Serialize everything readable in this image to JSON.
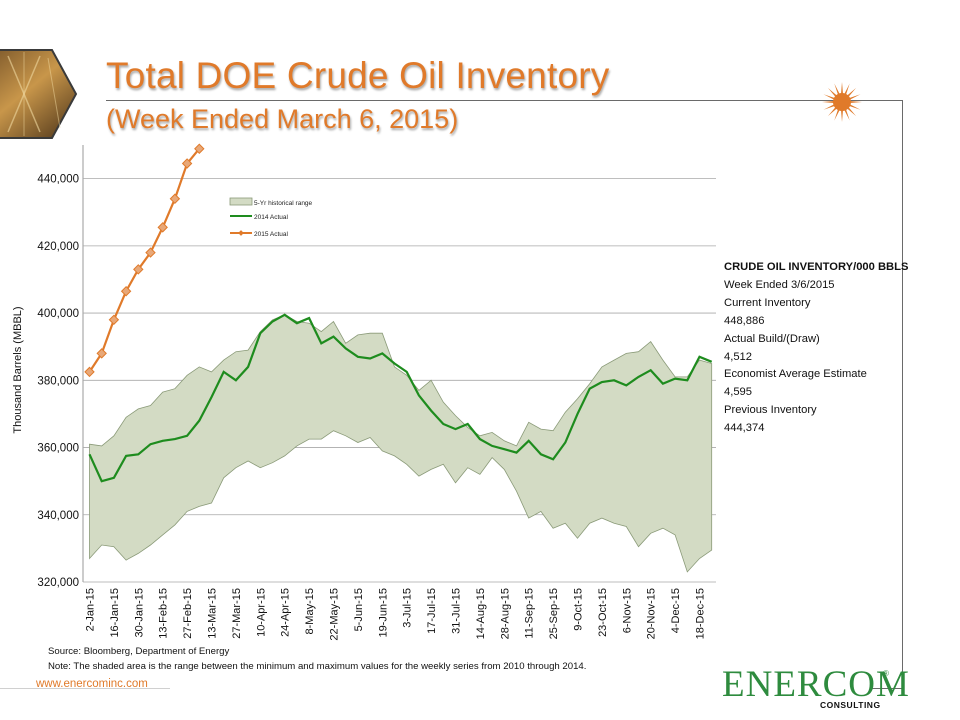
{
  "slide": {
    "title": "Total DOE Crude Oil Inventory",
    "subtitle": "(Week Ended March 6, 2015)",
    "url": "www.enercominc.com",
    "brand_logo_text": "ENERCOM",
    "brand_tag": "CONSULTING",
    "colors": {
      "accent": "#E07A2A",
      "brand_green": "#2E8B3E",
      "range_fill": "#D3DBC4",
      "line_2014": "#1E8C1E",
      "line_2015": "#E07A2A"
    }
  },
  "info_box": {
    "heading": "CRUDE OIL INVENTORY/000 BBLS",
    "week_ended": "Week Ended 3/6/2015",
    "current_label": "Current Inventory",
    "current_value": "448,886",
    "build_label": "Actual Build/(Draw)",
    "build_value": "4,512",
    "estimate_label": "Economist Average Estimate",
    "estimate_value": "4,595",
    "previous_label": "Previous Inventory",
    "previous_value": "444,374"
  },
  "footer": {
    "source": "Source: Bloomberg, Department of Energy",
    "note": "Note: The shaded area is the range between the minimum and maximum values for the weekly series from 2010 through 2014."
  },
  "chart_data": {
    "type": "line",
    "ylabel": "Thousand Barrels (MBBL)",
    "ylim": [
      320000,
      450000
    ],
    "yticks": [
      320000,
      340000,
      360000,
      380000,
      400000,
      420000,
      440000
    ],
    "ytick_labels": [
      "320,000",
      "340,000",
      "360,000",
      "380,000",
      "400,000",
      "420,000",
      "440,000"
    ],
    "grid": true,
    "legend_position": "upper-center",
    "tick_labels": [
      "2-Jan-15",
      "16-Jan-15",
      "30-Jan-15",
      "13-Feb-15",
      "27-Feb-15",
      "13-Mar-15",
      "27-Mar-15",
      "10-Apr-15",
      "24-Apr-15",
      "8-May-15",
      "22-May-15",
      "5-Jun-15",
      "19-Jun-15",
      "3-Jul-15",
      "17-Jul-15",
      "31-Jul-15",
      "14-Aug-15",
      "28-Aug-15",
      "11-Sep-15",
      "25-Sep-15",
      "9-Oct-15",
      "23-Oct-15",
      "6-Nov-15",
      "20-Nov-15",
      "4-Dec-15",
      "18-Dec-15"
    ],
    "weeks": [
      "2-Jan-15",
      "9-Jan-15",
      "16-Jan-15",
      "23-Jan-15",
      "30-Jan-15",
      "6-Feb-15",
      "13-Feb-15",
      "20-Feb-15",
      "27-Feb-15",
      "6-Mar-15",
      "13-Mar-15",
      "20-Mar-15",
      "27-Mar-15",
      "3-Apr-15",
      "10-Apr-15",
      "17-Apr-15",
      "24-Apr-15",
      "1-May-15",
      "8-May-15",
      "15-May-15",
      "22-May-15",
      "29-May-15",
      "5-Jun-15",
      "12-Jun-15",
      "19-Jun-15",
      "26-Jun-15",
      "3-Jul-15",
      "10-Jul-15",
      "17-Jul-15",
      "24-Jul-15",
      "31-Jul-15",
      "7-Aug-15",
      "14-Aug-15",
      "21-Aug-15",
      "28-Aug-15",
      "4-Sep-15",
      "11-Sep-15",
      "18-Sep-15",
      "25-Sep-15",
      "2-Oct-15",
      "9-Oct-15",
      "16-Oct-15",
      "23-Oct-15",
      "30-Oct-15",
      "6-Nov-15",
      "13-Nov-15",
      "20-Nov-15",
      "27-Nov-15",
      "4-Dec-15",
      "11-Dec-15",
      "18-Dec-15",
      "25-Dec-15"
    ],
    "series": [
      {
        "name": "5-Yr historical range",
        "kind": "range",
        "max": [
          361000,
          360500,
          363500,
          369000,
          371500,
          372500,
          376500,
          377500,
          381500,
          384000,
          382500,
          386000,
          388500,
          389000,
          394500,
          398000,
          399500,
          397500,
          397000,
          394500,
          397500,
          391000,
          393500,
          394000,
          394000,
          384000,
          381500,
          377000,
          380000,
          373500,
          369500,
          366000,
          363500,
          364500,
          362000,
          360500,
          367500,
          365500,
          365000,
          370500,
          374500,
          379000,
          384000,
          386000,
          388000,
          388500,
          391500,
          386000,
          381000,
          381000,
          386000,
          385000
        ],
        "min": [
          327000,
          331000,
          330500,
          326500,
          328500,
          331000,
          334000,
          337000,
          341000,
          342500,
          343500,
          351000,
          354000,
          356000,
          354000,
          355500,
          357500,
          360500,
          362500,
          362500,
          365000,
          363500,
          361500,
          363000,
          359000,
          357500,
          355000,
          351500,
          353500,
          355000,
          349500,
          354000,
          352000,
          357000,
          353500,
          347000,
          339000,
          341000,
          336000,
          337500,
          333000,
          337500,
          339000,
          337500,
          336500,
          330500,
          334500,
          336000,
          334000,
          323000,
          327000,
          329500
        ]
      },
      {
        "name": "2014 Actual",
        "kind": "line",
        "values": [
          358000,
          350000,
          351000,
          357500,
          358000,
          361000,
          362000,
          362500,
          363500,
          368000,
          375000,
          382500,
          380000,
          384000,
          394000,
          397500,
          399500,
          397000,
          398500,
          391000,
          393000,
          389500,
          387000,
          386500,
          388000,
          385000,
          382500,
          375500,
          371000,
          367000,
          365500,
          367000,
          362500,
          360500,
          359500,
          358500,
          362000,
          358000,
          356500,
          361500,
          370000,
          377500,
          379500,
          380000,
          378500,
          381000,
          383000,
          379000,
          380500,
          380000,
          387000,
          385500
        ]
      },
      {
        "name": "2015 Actual",
        "kind": "line",
        "values": [
          382500,
          388000,
          398000,
          406500,
          413000,
          418000,
          425500,
          434000,
          444500,
          448886
        ]
      }
    ]
  }
}
